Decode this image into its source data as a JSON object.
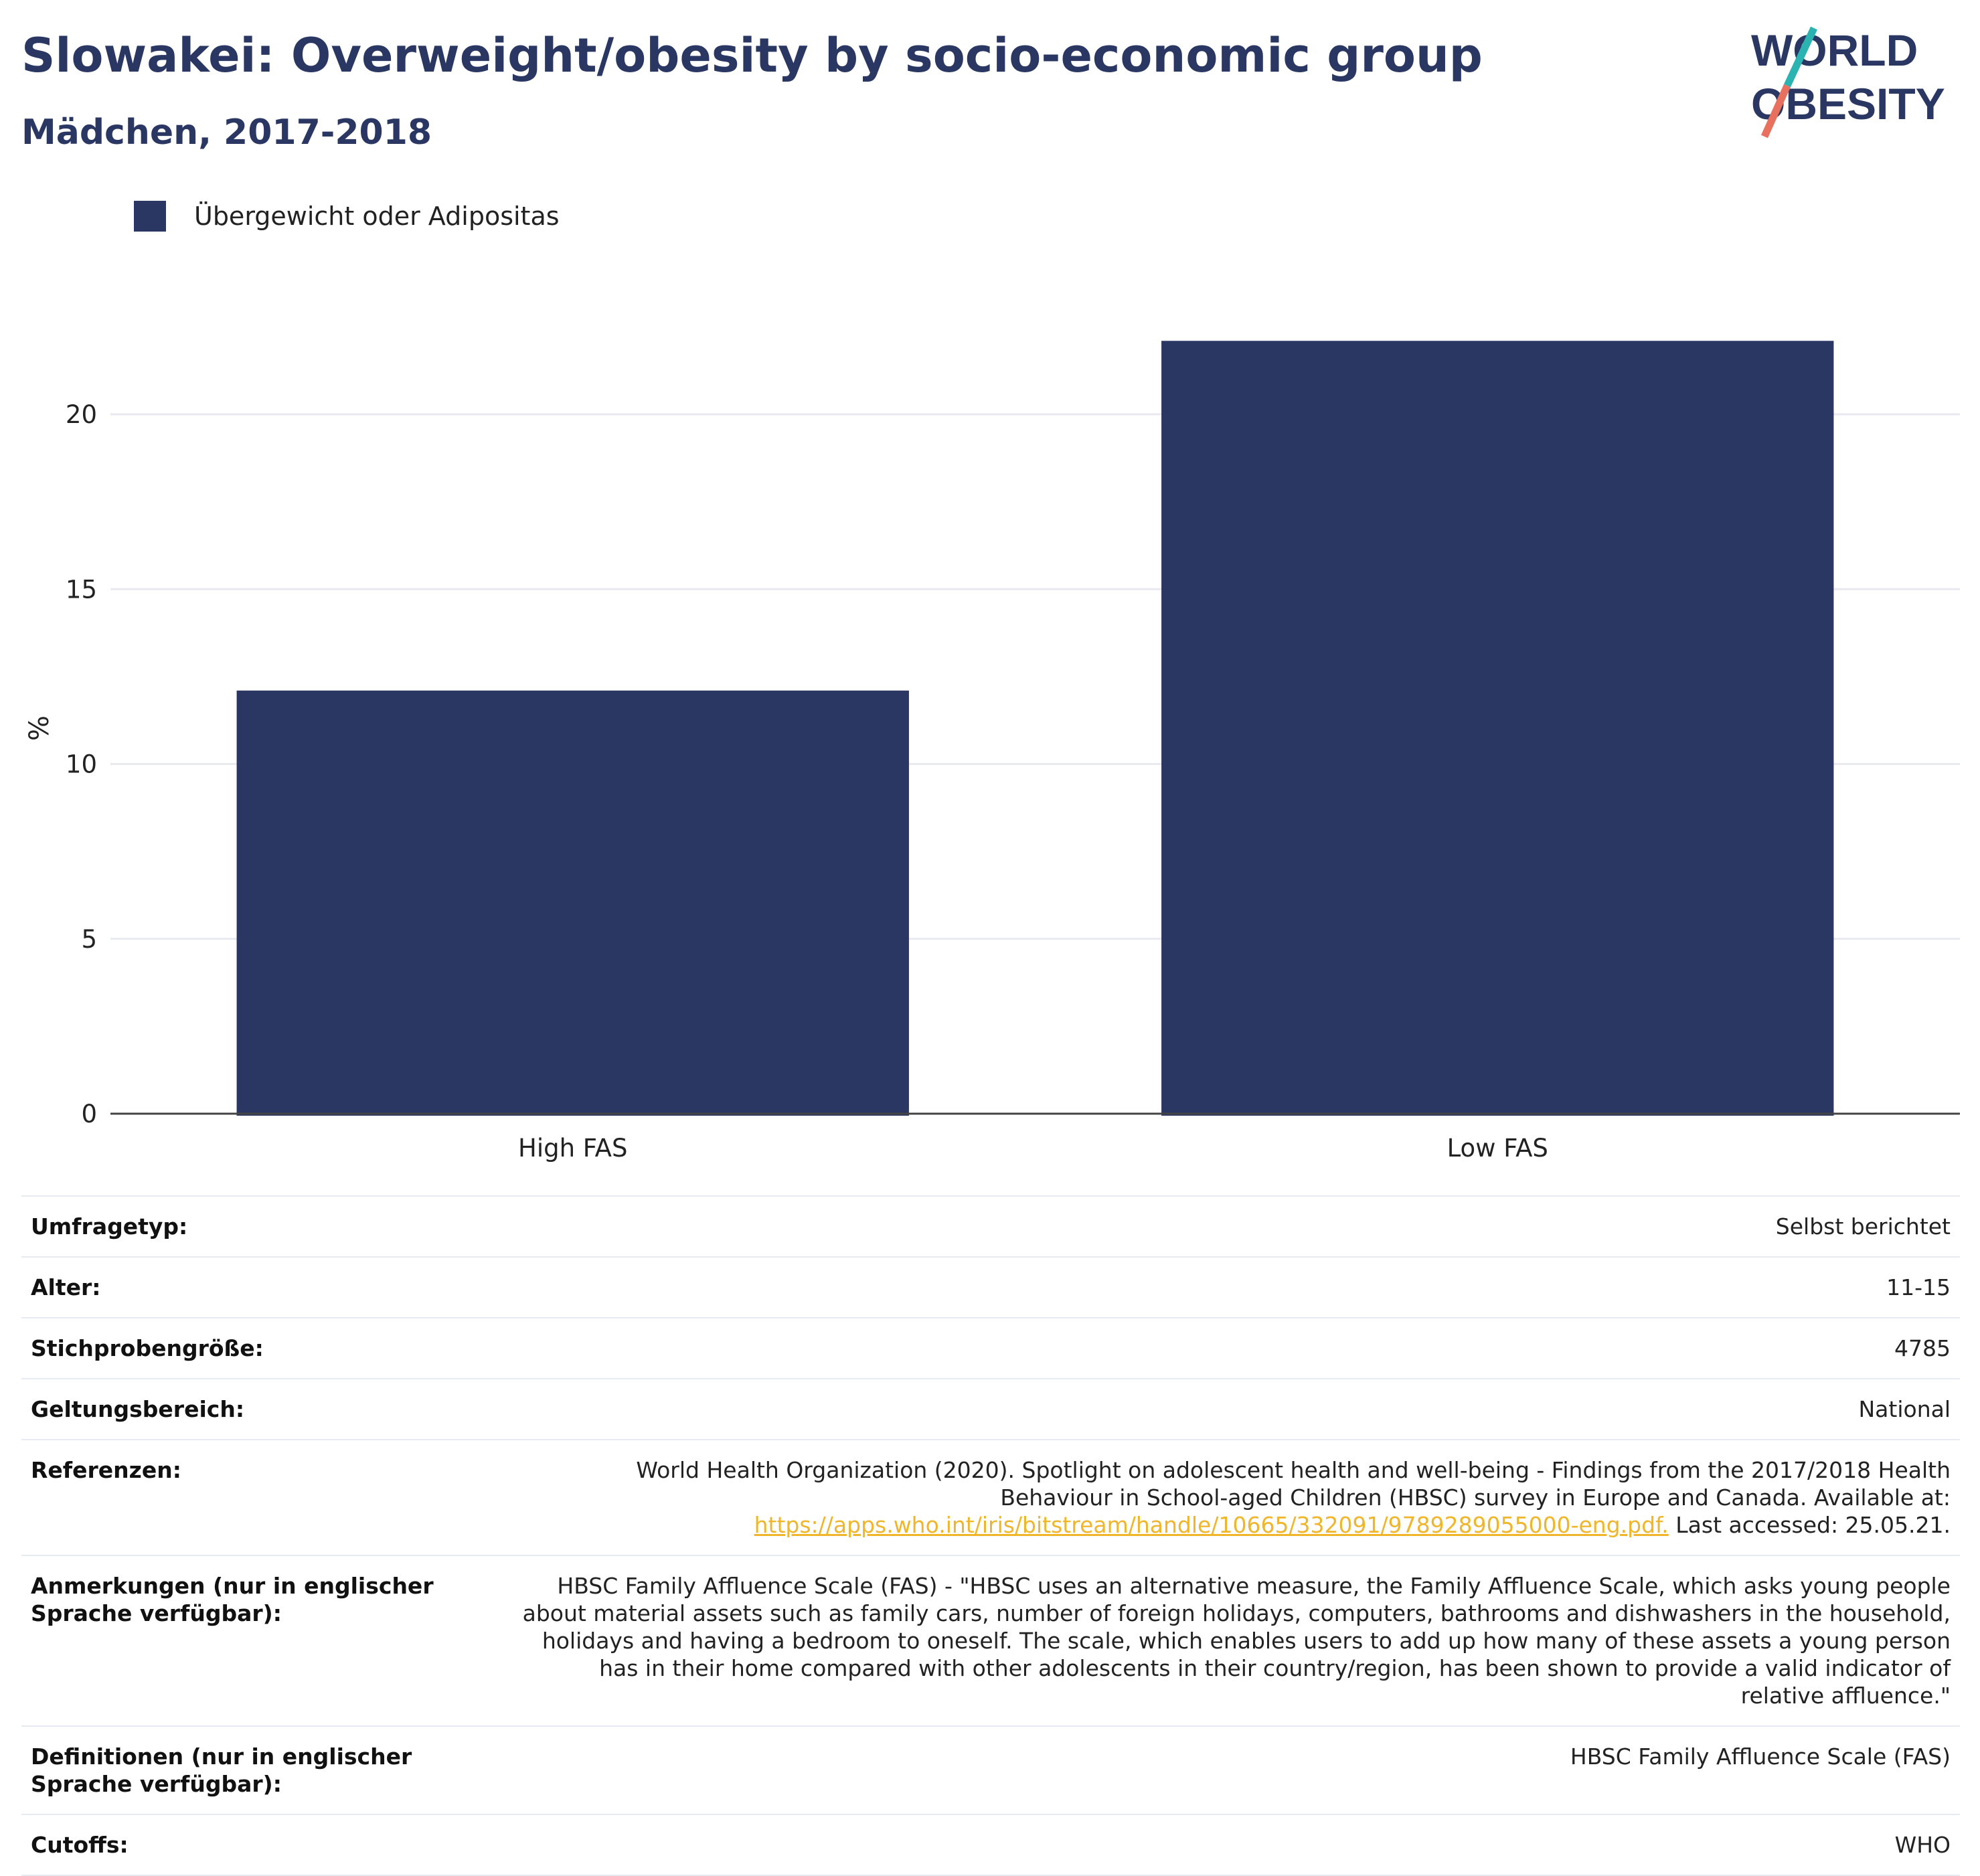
{
  "title": "Slowakei: Overweight/obesity by socio-economic group",
  "subtitle": "Mädchen, 2017-2018",
  "logo": {
    "line1": "WORLD",
    "line2": "OBESITY"
  },
  "colors": {
    "bar": "#2a3763",
    "accent_teal": "#2bb3b1",
    "accent_coral": "#e8705f",
    "link": "#f0b528"
  },
  "legend": {
    "label": "Übergewicht oder Adipositas"
  },
  "chart_data": {
    "type": "bar",
    "categories": [
      "High FAS",
      "Low FAS"
    ],
    "series": [
      {
        "name": "Übergewicht oder Adipositas",
        "values": [
          12.1,
          22.1
        ]
      }
    ],
    "ylabel": "%",
    "xlabel": "",
    "ylim": [
      0,
      24
    ],
    "yticks": [
      0,
      5,
      10,
      15,
      20
    ],
    "grid": true,
    "legend_position": "top-left"
  },
  "info": {
    "survey_type": {
      "label": "Umfragetyp:",
      "value": "Selbst berichtet"
    },
    "age": {
      "label": "Alter:",
      "value": "11-15"
    },
    "sample_size": {
      "label": "Stichprobengröße:",
      "value": "4785"
    },
    "scope": {
      "label": "Geltungsbereich:",
      "value": "National"
    },
    "references": {
      "label": "Referenzen:",
      "text": "World Health Organization (2020). Spotlight on adolescent health and well-being - Findings from the 2017/2018 Health Behaviour in School-aged Children (HBSC) survey in Europe and Canada. Available at:",
      "link": "https://apps.who.int/iris/bitstream/handle/10665/332091/9789289055000-eng.pdf.",
      "suffix": "Last accessed: 25.05.21."
    },
    "notes": {
      "label": "Anmerkungen (nur in englischer Sprache verfügbar):",
      "value": "HBSC Family Affluence Scale (FAS) - \"HBSC uses an alternative measure, the Family Affluence Scale, which asks young people about material assets such as family cars, number of foreign holidays, computers, bathrooms and dishwashers in the household, holidays and having a bedroom to oneself. The scale, which enables users to add up how many of these assets a young person has in their home compared with other adolescents in their country/region, has been shown to provide a valid indicator of relative affluence.\""
    },
    "definitions": {
      "label": "Definitionen (nur in englischer Sprache verfügbar):",
      "value": "HBSC Family Affluence Scale (FAS)"
    },
    "cutoffs": {
      "label": "Cutoffs:",
      "value": "WHO"
    }
  }
}
